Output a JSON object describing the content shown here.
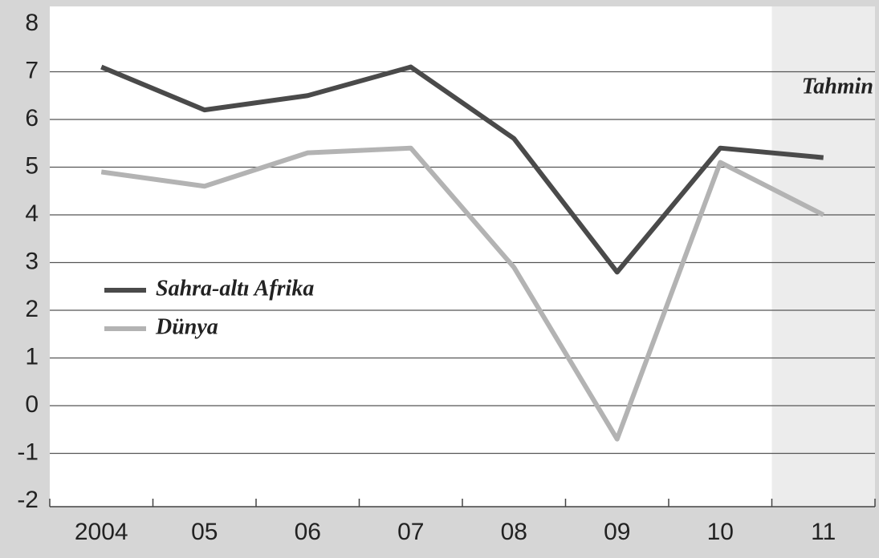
{
  "chart_data": {
    "type": "line",
    "categories": [
      "2004",
      "05",
      "06",
      "07",
      "08",
      "09",
      "10",
      "11"
    ],
    "series": [
      {
        "name": "Sahra-altı Afrika",
        "color": "#4a4a4a",
        "values": [
          7.1,
          6.2,
          6.5,
          7.1,
          5.6,
          2.8,
          5.4,
          5.2
        ]
      },
      {
        "name": "Dünya",
        "color": "#b3b3b3",
        "values": [
          4.9,
          4.6,
          5.3,
          5.4,
          2.9,
          -0.7,
          5.1,
          4.0
        ]
      }
    ],
    "annotation": "Tahmin",
    "ylim": [
      -2,
      8
    ],
    "yticks": [
      -2,
      -1,
      0,
      1,
      2,
      3,
      4,
      5,
      6,
      7,
      8
    ],
    "grid": true
  }
}
